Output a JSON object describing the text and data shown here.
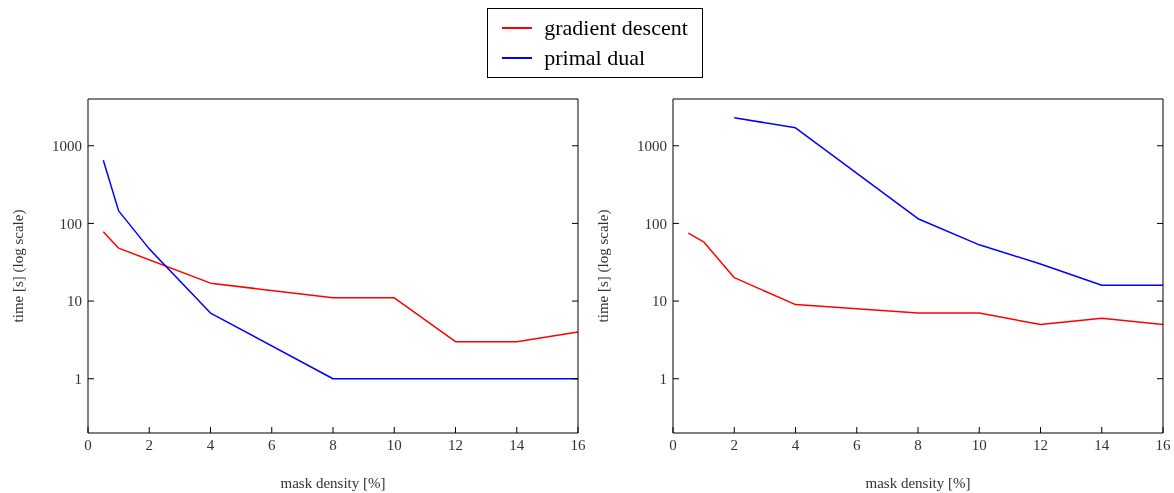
{
  "chart_data": [
    {
      "type": "line",
      "xlabel": "mask density [%]",
      "ylabel": "time [s] (log scale)",
      "log": "y",
      "legend": "top",
      "grid": false,
      "marker": "none",
      "line_style": "solid",
      "xlim": [
        0,
        16
      ],
      "xticks": [
        0,
        2,
        4,
        6,
        8,
        10,
        12,
        14,
        16
      ],
      "ylim": [
        0.2,
        4000
      ],
      "yticks": [
        1,
        10,
        100,
        1000
      ],
      "series": [
        {
          "name": "gradient descent",
          "color": "#ff0000",
          "x": [
            0.5,
            1,
            4,
            8,
            10,
            12,
            14,
            16
          ],
          "values": [
            78,
            48,
            17,
            11,
            11,
            3,
            3,
            4
          ]
        },
        {
          "name": "primal dual",
          "color": "#0000ff",
          "x": [
            0.5,
            1,
            2,
            4,
            8,
            16
          ],
          "values": [
            650,
            145,
            47,
            7,
            1,
            1
          ]
        }
      ]
    },
    {
      "type": "line",
      "xlabel": "mask density [%]",
      "ylabel": "time [s] (log scale)",
      "log": "y",
      "grid": false,
      "marker": "none",
      "line_style": "solid",
      "xlim": [
        0,
        16
      ],
      "xticks": [
        0,
        2,
        4,
        6,
        8,
        10,
        12,
        14,
        16
      ],
      "ylim": [
        0.2,
        4000
      ],
      "yticks": [
        1,
        10,
        100,
        1000
      ],
      "series": [
        {
          "color": "#ff0000",
          "x": [
            0.5,
            1,
            2,
            4,
            8,
            10,
            12,
            14,
            16
          ],
          "values": [
            75,
            58,
            20,
            9,
            7,
            7,
            5,
            6,
            5
          ]
        },
        {
          "color": "#0000ff",
          "x": [
            2,
            4,
            8,
            10,
            12,
            14,
            16
          ],
          "values": [
            2300,
            1700,
            115,
            53,
            30,
            16,
            16
          ]
        }
      ]
    }
  ]
}
